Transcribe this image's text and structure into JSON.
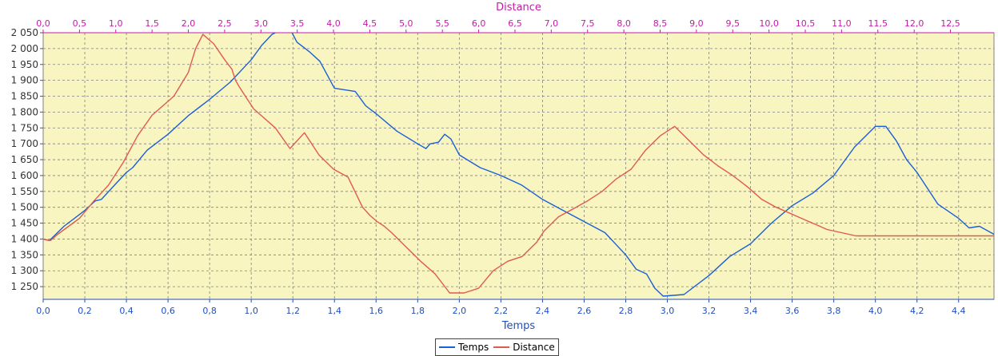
{
  "chart_data": {
    "type": "line",
    "x_axis_bottom": {
      "label": "Temps",
      "range": [
        0.0,
        4.57
      ],
      "ticks": [
        "0,0",
        "0,2",
        "0,4",
        "0,6",
        "0,8",
        "1,0",
        "1,2",
        "1,4",
        "1,6",
        "1,8",
        "2,0",
        "2,2",
        "2,4",
        "2,6",
        "2,8",
        "3,0",
        "3,2",
        "3,4",
        "3,6",
        "3,8",
        "4,0",
        "4,2",
        "4,4"
      ]
    },
    "x_axis_top": {
      "label": "Distance",
      "range": [
        0.0,
        13.1
      ],
      "ticks": [
        "0,0",
        "0,5",
        "1,0",
        "1,5",
        "2,0",
        "2,5",
        "3,0",
        "3,5",
        "4,0",
        "4,5",
        "5,0",
        "5,5",
        "6,0",
        "6,5",
        "7,0",
        "7,5",
        "8,0",
        "8,5",
        "9,0",
        "9,5",
        "10,0",
        "10,5",
        "11,0",
        "11,5",
        "12,0",
        "12,5"
      ]
    },
    "y_axis": {
      "range": [
        1210,
        2050
      ],
      "ticks": [
        "1 250",
        "1 300",
        "1 350",
        "1 400",
        "1 450",
        "1 500",
        "1 550",
        "1 600",
        "1 650",
        "1 700",
        "1 750",
        "1 800",
        "1 850",
        "1 900",
        "1 950",
        "2 000",
        "2 050"
      ]
    },
    "grid": true,
    "legend_position": "bottom-center",
    "colors": {
      "plot_background": "#f8f5c0",
      "grid": "#808080",
      "Temps": "#1a5fd6",
      "Distance": "#e05a50",
      "top_axis": "#c41aa8",
      "bottom_axis": "#1f4fc0"
    },
    "series": [
      {
        "name": "Temps",
        "x_axis": "bottom",
        "x": [
          0.0,
          0.03,
          0.1,
          0.2,
          0.25,
          0.28,
          0.35,
          0.4,
          0.43,
          0.5,
          0.6,
          0.7,
          0.8,
          0.9,
          0.95,
          1.0,
          1.05,
          1.1,
          1.18,
          1.22,
          1.28,
          1.33,
          1.4,
          1.5,
          1.55,
          1.6,
          1.7,
          1.8,
          1.84,
          1.86,
          1.9,
          1.93,
          1.96,
          2.0,
          2.1,
          2.2,
          2.3,
          2.4,
          2.5,
          2.6,
          2.7,
          2.8,
          2.85,
          2.9,
          2.94,
          2.98,
          3.08,
          3.2,
          3.3,
          3.4,
          3.5,
          3.6,
          3.7,
          3.8,
          3.9,
          4.0,
          4.05,
          4.1,
          4.15,
          4.2,
          4.3,
          4.4,
          4.45,
          4.5,
          4.57
        ],
        "y": [
          1400,
          1395,
          1440,
          1490,
          1520,
          1525,
          1575,
          1610,
          1625,
          1680,
          1730,
          1790,
          1840,
          1895,
          1930,
          1965,
          2010,
          2045,
          2070,
          2020,
          1990,
          1960,
          1875,
          1865,
          1820,
          1795,
          1740,
          1700,
          1685,
          1700,
          1705,
          1730,
          1715,
          1665,
          1625,
          1600,
          1570,
          1525,
          1490,
          1455,
          1420,
          1350,
          1305,
          1290,
          1245,
          1220,
          1225,
          1285,
          1345,
          1385,
          1450,
          1505,
          1545,
          1600,
          1690,
          1755,
          1755,
          1710,
          1650,
          1610,
          1510,
          1465,
          1435,
          1440,
          1415
        ]
      },
      {
        "name": "Distance",
        "x_axis": "top",
        "x": [
          0.0,
          0.1,
          0.2,
          0.35,
          0.5,
          0.7,
          0.9,
          1.1,
          1.3,
          1.5,
          1.7,
          1.8,
          2.0,
          2.1,
          2.2,
          2.35,
          2.5,
          2.6,
          2.65,
          2.7,
          2.8,
          2.9,
          3.0,
          3.2,
          3.4,
          3.6,
          3.8,
          4.0,
          4.2,
          4.4,
          4.5,
          4.6,
          4.7,
          4.8,
          5.0,
          5.2,
          5.4,
          5.6,
          5.8,
          6.0,
          6.2,
          6.4,
          6.6,
          6.8,
          6.9,
          7.1,
          7.3,
          7.5,
          7.7,
          7.9,
          8.1,
          8.3,
          8.5,
          8.7,
          8.9,
          9.1,
          9.3,
          9.5,
          9.7,
          9.9,
          10.1,
          10.35,
          10.5,
          10.7,
          10.8,
          11.0,
          11.2,
          11.4,
          11.6,
          11.8,
          12.0,
          12.2,
          12.4,
          12.6,
          12.8,
          13.1
        ],
        "y": [
          1400,
          1395,
          1415,
          1440,
          1465,
          1520,
          1570,
          1640,
          1725,
          1790,
          1830,
          1850,
          1925,
          2000,
          2045,
          2015,
          1965,
          1935,
          1900,
          1880,
          1845,
          1810,
          1790,
          1750,
          1685,
          1735,
          1665,
          1620,
          1595,
          1500,
          1475,
          1455,
          1440,
          1420,
          1375,
          1330,
          1290,
          1230,
          1230,
          1245,
          1300,
          1330,
          1345,
          1390,
          1425,
          1470,
          1495,
          1520,
          1550,
          1590,
          1620,
          1680,
          1725,
          1755,
          1710,
          1665,
          1630,
          1600,
          1565,
          1525,
          1500,
          1475,
          1460,
          1440,
          1430,
          1420,
          1410,
          1410,
          1410,
          1410,
          1410,
          1410,
          1410,
          1410,
          1410,
          1410
        ]
      }
    ]
  },
  "legend": [
    {
      "label": "Temps",
      "color": "#1a5fd6"
    },
    {
      "label": "Distance",
      "color": "#e05a50"
    }
  ]
}
